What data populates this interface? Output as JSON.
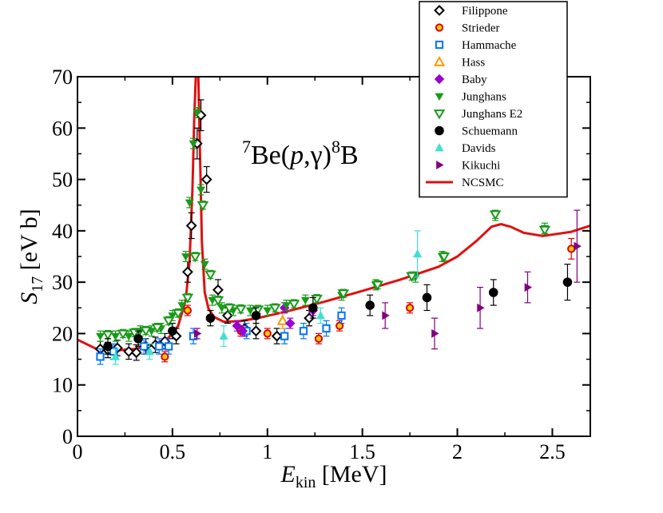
{
  "chart_data": {
    "type": "scatter",
    "title": "",
    "xlabel": "E",
    "xlabel_sub": "kin",
    "xlabel_unit": " [MeV]",
    "ylabel": "S",
    "ylabel_sub": "17",
    "ylabel_unit": " [eV b]",
    "xlim": [
      0,
      2.7
    ],
    "ylim": [
      0,
      70
    ],
    "xticks": [
      0,
      0.5,
      1,
      1.5,
      2,
      2.5
    ],
    "xtick_labels": [
      "0",
      "0.5",
      "1",
      "1.5",
      "2",
      "2.5"
    ],
    "yticks": [
      0,
      10,
      20,
      30,
      40,
      50,
      60,
      70
    ],
    "ytick_labels": [
      "0",
      "10",
      "20",
      "30",
      "40",
      "50",
      "60",
      "70"
    ],
    "grid": false,
    "legend_position": "top-right",
    "annotation": {
      "sup1": "7",
      "text1": "Be(",
      "italic": "p",
      "text2": ",γ)",
      "sup2": "8",
      "text3": "B"
    },
    "series": [
      {
        "name": "Filippone",
        "marker": "diamond-open",
        "color": "#000000",
        "x": [
          0.12,
          0.16,
          0.21,
          0.27,
          0.31,
          0.36,
          0.41,
          0.46,
          0.52,
          0.58,
          0.6,
          0.63,
          0.65,
          0.68,
          0.74,
          0.79,
          0.88,
          0.94,
          1.05,
          1.22
        ],
        "y": [
          17,
          16.8,
          17.2,
          16.5,
          16.3,
          17.5,
          17.8,
          18.5,
          19.5,
          32,
          41,
          57,
          62.5,
          50,
          28.5,
          23.5,
          21,
          20.5,
          19.5,
          23
        ],
        "err": [
          1.5,
          1.5,
          1.5,
          1.5,
          1.5,
          1.5,
          1.5,
          1.5,
          1.5,
          2,
          2.5,
          3,
          3,
          2.5,
          2,
          1.5,
          1.5,
          1.5,
          1.5,
          1.5
        ]
      },
      {
        "name": "Strieder",
        "marker": "circle-open",
        "color": "#e00000",
        "x": [
          0.46,
          0.58,
          0.86,
          1.0,
          1.27,
          1.38,
          1.75,
          2.6
        ],
        "y": [
          15.5,
          24.5,
          20.5,
          20,
          19,
          21.5,
          25,
          36.5
        ],
        "err": [
          1,
          1,
          1,
          1,
          1,
          1,
          1,
          2
        ]
      },
      {
        "name": "Hammache",
        "marker": "square-open",
        "color": "#0072ff",
        "x": [
          0.12,
          0.19,
          0.35,
          0.43,
          0.48,
          0.61,
          0.89,
          1.09,
          1.19,
          1.31,
          1.39
        ],
        "y": [
          15.5,
          16.5,
          17.5,
          17.5,
          17.5,
          19.5,
          20.5,
          19.5,
          20.5,
          21,
          23.5
        ],
        "err": [
          1.5,
          1.5,
          1.5,
          1.5,
          1.5,
          1.5,
          1.5,
          1.5,
          1.5,
          1.5,
          1.5
        ]
      },
      {
        "name": "Hass",
        "marker": "triangle-up-open",
        "color": "#ff9900",
        "x": [
          1.08
        ],
        "y": [
          22.5
        ],
        "err": [
          1.5
        ]
      },
      {
        "name": "Baby",
        "marker": "diamond-filled",
        "color": "#9a00d0",
        "x": [
          0.84,
          0.87,
          1.09,
          1.12,
          1.24
        ],
        "y": [
          21.5,
          20.5,
          25,
          22,
          24.5
        ],
        "err": [
          1,
          1,
          1,
          1,
          1
        ]
      },
      {
        "name": "Junghans",
        "marker": "triangle-down-filled",
        "color": "#1a9a1a",
        "x": [
          0.12,
          0.2,
          0.27,
          0.33,
          0.39,
          0.44,
          0.5,
          0.55,
          0.57,
          0.59,
          0.61,
          0.63,
          0.65,
          0.67,
          0.71,
          0.76,
          0.82,
          0.91,
          1.0,
          1.1,
          1.2,
          1.39,
          1.57,
          1.78,
          1.92,
          2.2,
          2.46
        ],
        "y": [
          19.5,
          19.5,
          19.5,
          20.5,
          20.5,
          21,
          23.5,
          25.5,
          35,
          45.5,
          57,
          63,
          48,
          33.5,
          26.5,
          25,
          24.5,
          24.5,
          24.5,
          25.5,
          26.5,
          27.5,
          29.5,
          31,
          35,
          43,
          40.5
        ],
        "err": [
          1,
          1,
          1,
          1,
          1,
          1,
          1,
          1,
          1,
          1,
          1,
          1,
          1,
          1,
          1,
          1,
          1,
          1,
          1,
          1,
          1,
          1,
          1,
          1,
          1,
          1,
          1
        ]
      },
      {
        "name": "Junghans E2",
        "marker": "triangle-down-open",
        "color": "#1a9a1a",
        "x": [
          0.16,
          0.24,
          0.3,
          0.36,
          0.42,
          0.48,
          0.53,
          0.58,
          0.62,
          0.66,
          0.7,
          0.74,
          0.8,
          0.86,
          0.95,
          1.04,
          1.14,
          1.26,
          1.4,
          1.58,
          1.76,
          1.93,
          2.2,
          2.46
        ],
        "y": [
          19.8,
          20,
          20.2,
          20.6,
          21.2,
          22.5,
          24,
          27,
          35,
          45,
          31.5,
          26.5,
          25,
          24.8,
          24.7,
          25,
          25.8,
          26.8,
          27.8,
          29.5,
          31.2,
          35,
          43.2,
          40.2
        ],
        "err": [
          0.8,
          0.8,
          0.8,
          0.8,
          0.8,
          0.8,
          0.8,
          0.8,
          0.8,
          0.8,
          0.8,
          0.8,
          0.8,
          0.8,
          0.8,
          0.8,
          0.8,
          0.8,
          0.8,
          0.8,
          0.8,
          0.8,
          0.8,
          0.8
        ]
      },
      {
        "name": "Schuemann",
        "marker": "circle-filled",
        "color": "#000000",
        "x": [
          0.16,
          0.32,
          0.5,
          0.7,
          0.94,
          1.24,
          1.54,
          1.84,
          2.19,
          2.58
        ],
        "y": [
          17.5,
          19,
          20.5,
          23,
          23.5,
          25,
          25.5,
          27,
          28,
          30
        ],
        "err": [
          1.5,
          1.5,
          1.5,
          1.5,
          1.5,
          2,
          2,
          2.5,
          2.5,
          3.5
        ]
      },
      {
        "name": "Davids",
        "marker": "triangle-up-filled",
        "color": "#40e0d0",
        "x": [
          0.2,
          0.38,
          0.77,
          1.28,
          1.79
        ],
        "y": [
          15.5,
          16.5,
          19.5,
          23.5,
          35.5
        ],
        "err": [
          1.5,
          1.5,
          2,
          1.5,
          4.5
        ]
      },
      {
        "name": "Kikuchi",
        "marker": "triangle-right-filled",
        "color": "#800080",
        "x": [
          0.63,
          1.62,
          1.88,
          2.12,
          2.37,
          2.63
        ],
        "y": [
          20,
          23.5,
          20,
          25,
          29,
          37
        ],
        "err": [
          1,
          2.5,
          3,
          4,
          3,
          7
        ]
      },
      {
        "name": "NCSMC",
        "marker": "line",
        "color": "#e01010",
        "x": [
          0.0,
          0.1,
          0.2,
          0.3,
          0.4,
          0.48,
          0.53,
          0.57,
          0.59,
          0.605,
          0.615,
          0.625,
          0.635,
          0.645,
          0.655,
          0.67,
          0.69,
          0.72,
          0.77,
          0.85,
          0.95,
          1.1,
          1.3,
          1.5,
          1.7,
          1.9,
          2.0,
          2.1,
          2.18,
          2.23,
          2.28,
          2.35,
          2.45,
          2.6,
          2.7
        ],
        "y": [
          18.8,
          17.0,
          16.7,
          17.0,
          17.8,
          19.2,
          21.5,
          26.5,
          34,
          48,
          62,
          72,
          72,
          55,
          38,
          28,
          24.8,
          23.2,
          22.3,
          22.4,
          23.0,
          24.3,
          26.2,
          28.3,
          30.5,
          33.0,
          35.0,
          38.0,
          40.8,
          41.3,
          40.8,
          39.6,
          39.0,
          39.8,
          41.0
        ]
      }
    ]
  }
}
